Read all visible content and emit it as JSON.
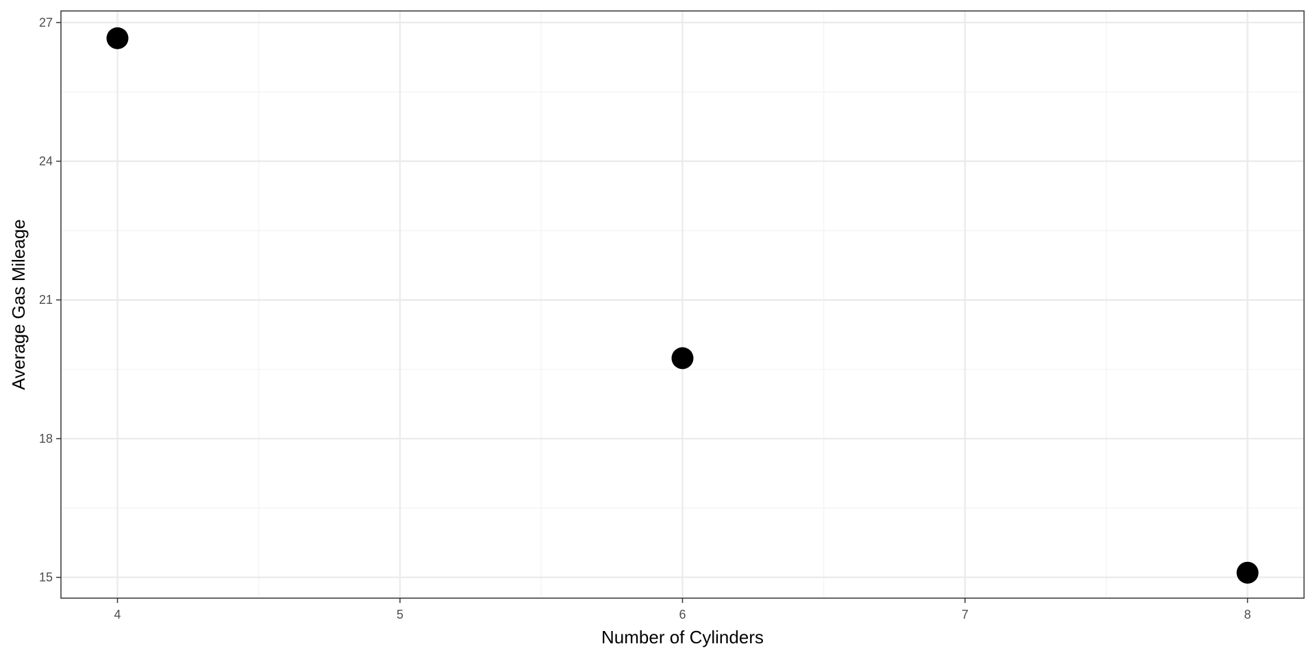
{
  "chart_data": {
    "type": "scatter",
    "title": "",
    "xlabel": "Number of Cylinders",
    "ylabel": "Average Gas Mileage",
    "x": [
      4,
      6,
      8
    ],
    "y": [
      26.66,
      19.74,
      15.1
    ],
    "xlim": [
      3.8,
      8.2
    ],
    "ylim": [
      14.55,
      27.25
    ],
    "xticks": [
      4,
      5,
      6,
      7,
      8
    ],
    "xtick_labels": [
      "4",
      "5",
      "6",
      "7",
      "8"
    ],
    "yticks": [
      15,
      18,
      21,
      24,
      27
    ],
    "ytick_labels": [
      "15",
      "18",
      "21",
      "24",
      "27"
    ],
    "grid": true,
    "legend": "none",
    "point_color": "#000000",
    "panel_border_color": "#333333",
    "grid_major_color": "#ebebeb",
    "grid_minor_color": "#f2f2f2"
  }
}
